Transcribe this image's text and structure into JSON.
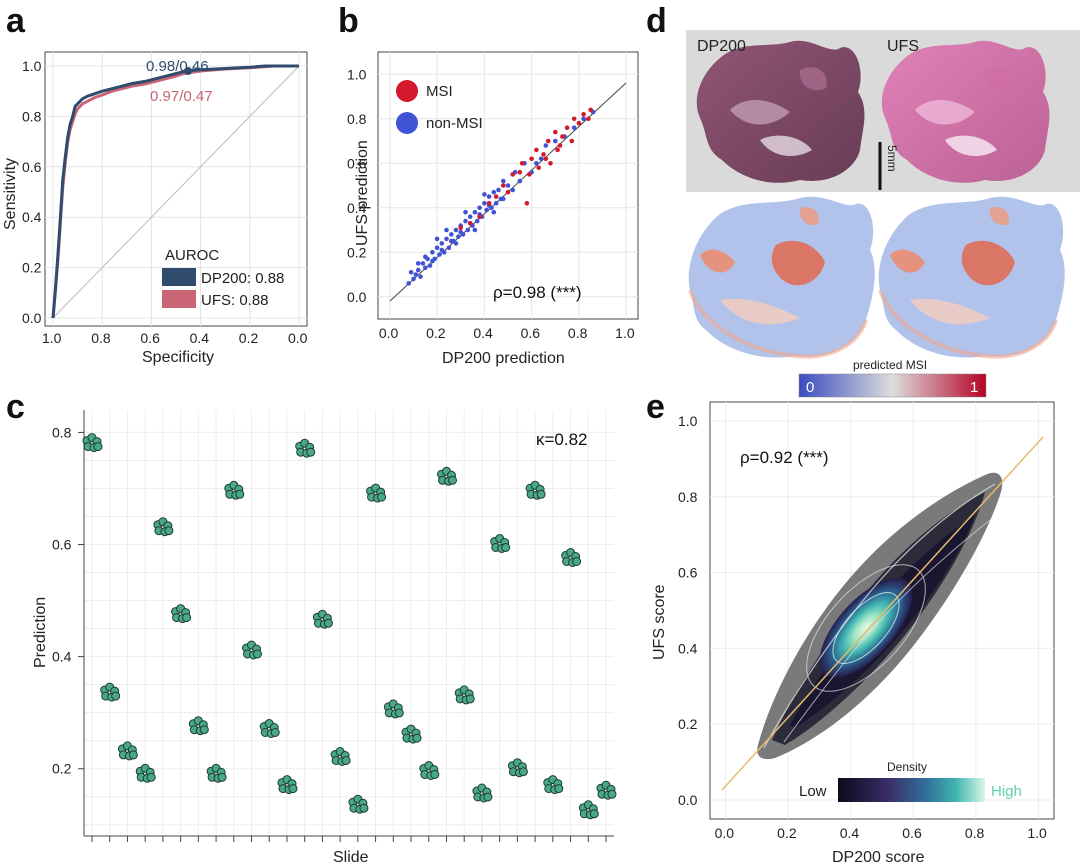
{
  "panels": {
    "a": "a",
    "b": "b",
    "c": "c",
    "d": "d",
    "e": "e"
  },
  "colors": {
    "dp200": "#2f4b6e",
    "ufs": "#c96574",
    "msi": "#d3192c",
    "nonmsi": "#4052d6",
    "dots_c": "#4aa88a",
    "density_low": "#0c0a1c",
    "density_high": "#7ee8c8"
  },
  "chart_data": [
    {
      "id": "a",
      "type": "line",
      "xlabel": "Specificity",
      "ylabel": "Sensitivity",
      "xlim": [
        1.0,
        0.0
      ],
      "ylim": [
        0.0,
        1.0
      ],
      "x_ticks": [
        "1.0",
        "0.8",
        "0.6",
        "0.4",
        "0.2",
        "0.0"
      ],
      "y_ticks": [
        "0.0",
        "0.2",
        "0.4",
        "0.6",
        "0.8",
        "1.0"
      ],
      "legend_title": "AUROC",
      "legend_placement": "bottom-right",
      "series": [
        {
          "name": "DP200: 0.88",
          "annotation": "0.98/0.46",
          "x": [
            1.0,
            0.99,
            0.98,
            0.97,
            0.96,
            0.95,
            0.94,
            0.93,
            0.92,
            0.91,
            0.9,
            0.88,
            0.86,
            0.83,
            0.8,
            0.76,
            0.72,
            0.68,
            0.62,
            0.56,
            0.5,
            0.46,
            0.4,
            0.3,
            0.2,
            0.14,
            0.1,
            0.05,
            0.0
          ],
          "y": [
            0.0,
            0.12,
            0.25,
            0.4,
            0.55,
            0.64,
            0.72,
            0.77,
            0.8,
            0.84,
            0.85,
            0.87,
            0.88,
            0.89,
            0.9,
            0.91,
            0.92,
            0.93,
            0.94,
            0.955,
            0.97,
            0.98,
            0.985,
            0.99,
            0.995,
            1.0,
            1.0,
            1.0,
            1.0
          ]
        },
        {
          "name": "UFS: 0.88",
          "annotation": "0.97/0.47",
          "x": [
            1.0,
            0.99,
            0.98,
            0.97,
            0.96,
            0.95,
            0.94,
            0.93,
            0.92,
            0.91,
            0.9,
            0.88,
            0.86,
            0.83,
            0.8,
            0.76,
            0.72,
            0.68,
            0.62,
            0.56,
            0.5,
            0.47,
            0.4,
            0.3,
            0.2,
            0.14,
            0.1,
            0.05,
            0.0
          ],
          "y": [
            0.0,
            0.11,
            0.23,
            0.38,
            0.52,
            0.62,
            0.7,
            0.75,
            0.78,
            0.81,
            0.83,
            0.85,
            0.86,
            0.875,
            0.885,
            0.9,
            0.91,
            0.92,
            0.93,
            0.945,
            0.96,
            0.97,
            0.98,
            0.988,
            0.993,
            0.997,
            1.0,
            1.0,
            1.0
          ]
        }
      ]
    },
    {
      "id": "b",
      "type": "scatter",
      "xlabel": "DP200 prediction",
      "ylabel": "UFS prediction",
      "xlim": [
        -0.05,
        1.05
      ],
      "ylim": [
        -0.1,
        1.1
      ],
      "x_ticks": [
        "0.0",
        "0.2",
        "0.4",
        "0.6",
        "0.8",
        "1.0"
      ],
      "y_ticks": [
        "0.0",
        "0.2",
        "0.4",
        "0.6",
        "0.8",
        "1.0"
      ],
      "annotation": "ρ=0.98 (***)",
      "legend_placement": "top-left",
      "series": [
        {
          "name": "MSI",
          "points": [
            [
              0.3,
              0.31
            ],
            [
              0.34,
              0.33
            ],
            [
              0.38,
              0.36
            ],
            [
              0.42,
              0.42
            ],
            [
              0.45,
              0.45
            ],
            [
              0.48,
              0.5
            ],
            [
              0.5,
              0.47
            ],
            [
              0.52,
              0.55
            ],
            [
              0.55,
              0.56
            ],
            [
              0.56,
              0.6
            ],
            [
              0.58,
              0.42
            ],
            [
              0.6,
              0.62
            ],
            [
              0.62,
              0.66
            ],
            [
              0.63,
              0.58
            ],
            [
              0.65,
              0.64
            ],
            [
              0.67,
              0.7
            ],
            [
              0.68,
              0.6
            ],
            [
              0.7,
              0.74
            ],
            [
              0.72,
              0.68
            ],
            [
              0.73,
              0.72
            ],
            [
              0.75,
              0.76
            ],
            [
              0.77,
              0.7
            ],
            [
              0.78,
              0.8
            ],
            [
              0.8,
              0.78
            ],
            [
              0.82,
              0.82
            ],
            [
              0.84,
              0.8
            ],
            [
              0.85,
              0.84
            ],
            [
              0.71,
              0.66
            ],
            [
              0.59,
              0.55
            ],
            [
              0.66,
              0.62
            ]
          ]
        },
        {
          "name": "non-MSI",
          "points": [
            [
              0.08,
              0.06
            ],
            [
              0.1,
              0.08
            ],
            [
              0.11,
              0.1
            ],
            [
              0.12,
              0.12
            ],
            [
              0.13,
              0.09
            ],
            [
              0.14,
              0.15
            ],
            [
              0.15,
              0.13
            ],
            [
              0.16,
              0.17
            ],
            [
              0.17,
              0.14
            ],
            [
              0.18,
              0.2
            ],
            [
              0.19,
              0.17
            ],
            [
              0.2,
              0.22
            ],
            [
              0.21,
              0.19
            ],
            [
              0.22,
              0.24
            ],
            [
              0.23,
              0.2
            ],
            [
              0.24,
              0.26
            ],
            [
              0.25,
              0.22
            ],
            [
              0.26,
              0.28
            ],
            [
              0.27,
              0.25
            ],
            [
              0.28,
              0.3
            ],
            [
              0.29,
              0.27
            ],
            [
              0.3,
              0.32
            ],
            [
              0.31,
              0.28
            ],
            [
              0.32,
              0.34
            ],
            [
              0.33,
              0.3
            ],
            [
              0.34,
              0.36
            ],
            [
              0.35,
              0.32
            ],
            [
              0.36,
              0.38
            ],
            [
              0.37,
              0.34
            ],
            [
              0.38,
              0.4
            ],
            [
              0.39,
              0.36
            ],
            [
              0.4,
              0.42
            ],
            [
              0.41,
              0.39
            ],
            [
              0.42,
              0.45
            ],
            [
              0.43,
              0.4
            ],
            [
              0.44,
              0.47
            ],
            [
              0.45,
              0.42
            ],
            [
              0.46,
              0.48
            ],
            [
              0.47,
              0.44
            ],
            [
              0.48,
              0.52
            ],
            [
              0.5,
              0.5
            ],
            [
              0.52,
              0.48
            ],
            [
              0.53,
              0.56
            ],
            [
              0.55,
              0.52
            ],
            [
              0.57,
              0.6
            ],
            [
              0.6,
              0.56
            ],
            [
              0.62,
              0.6
            ],
            [
              0.64,
              0.62
            ],
            [
              0.66,
              0.68
            ],
            [
              0.7,
              0.7
            ],
            [
              0.74,
              0.72
            ],
            [
              0.78,
              0.76
            ],
            [
              0.82,
              0.8
            ],
            [
              0.86,
              0.83
            ],
            [
              0.15,
              0.18
            ],
            [
              0.18,
              0.16
            ],
            [
              0.22,
              0.21
            ],
            [
              0.26,
              0.25
            ],
            [
              0.3,
              0.29
            ],
            [
              0.34,
              0.33
            ],
            [
              0.38,
              0.37
            ],
            [
              0.42,
              0.41
            ],
            [
              0.24,
              0.3
            ],
            [
              0.28,
              0.24
            ],
            [
              0.32,
              0.38
            ],
            [
              0.36,
              0.3
            ],
            [
              0.2,
              0.26
            ],
            [
              0.4,
              0.46
            ],
            [
              0.44,
              0.38
            ],
            [
              0.48,
              0.44
            ],
            [
              0.12,
              0.15
            ],
            [
              0.09,
              0.11
            ]
          ]
        }
      ]
    },
    {
      "id": "c",
      "type": "scatter",
      "xlabel": "Slide",
      "ylabel": "Prediction",
      "ylim": [
        0.08,
        0.84
      ],
      "y_ticks": [
        "0.2",
        "0.4",
        "0.6",
        "0.8"
      ],
      "annotation": "κ=0.82",
      "slide_means": [
        0.78,
        0.335,
        0.23,
        0.19,
        0.63,
        0.475,
        0.275,
        0.19,
        0.695,
        0.41,
        0.27,
        0.17,
        0.77,
        0.465,
        0.22,
        0.135,
        0.69,
        0.305,
        0.26,
        0.195,
        0.72,
        0.33,
        0.155,
        0.6,
        0.2,
        0.695,
        0.17,
        0.575,
        0.125,
        0.16
      ]
    },
    {
      "id": "e",
      "type": "heatmap",
      "xlabel": "DP200 score",
      "ylabel": "UFS score",
      "xlim": [
        -0.05,
        1.05
      ],
      "ylim": [
        -0.05,
        1.05
      ],
      "x_ticks": [
        "0.0",
        "0.2",
        "0.4",
        "0.6",
        "0.8",
        "1.0"
      ],
      "y_ticks": [
        "0.0",
        "0.2",
        "0.4",
        "0.6",
        "0.8",
        "1.0"
      ],
      "annotation": "ρ=0.92 (***)",
      "colorbar": {
        "title": "Density",
        "low": "Low",
        "high": "High"
      }
    }
  ],
  "panel_d": {
    "label_left": "DP200",
    "label_right": "UFS",
    "scale_bar": "5mm",
    "colorbar_title": "predicted MSI",
    "colorbar_min": "0",
    "colorbar_max": "1"
  }
}
